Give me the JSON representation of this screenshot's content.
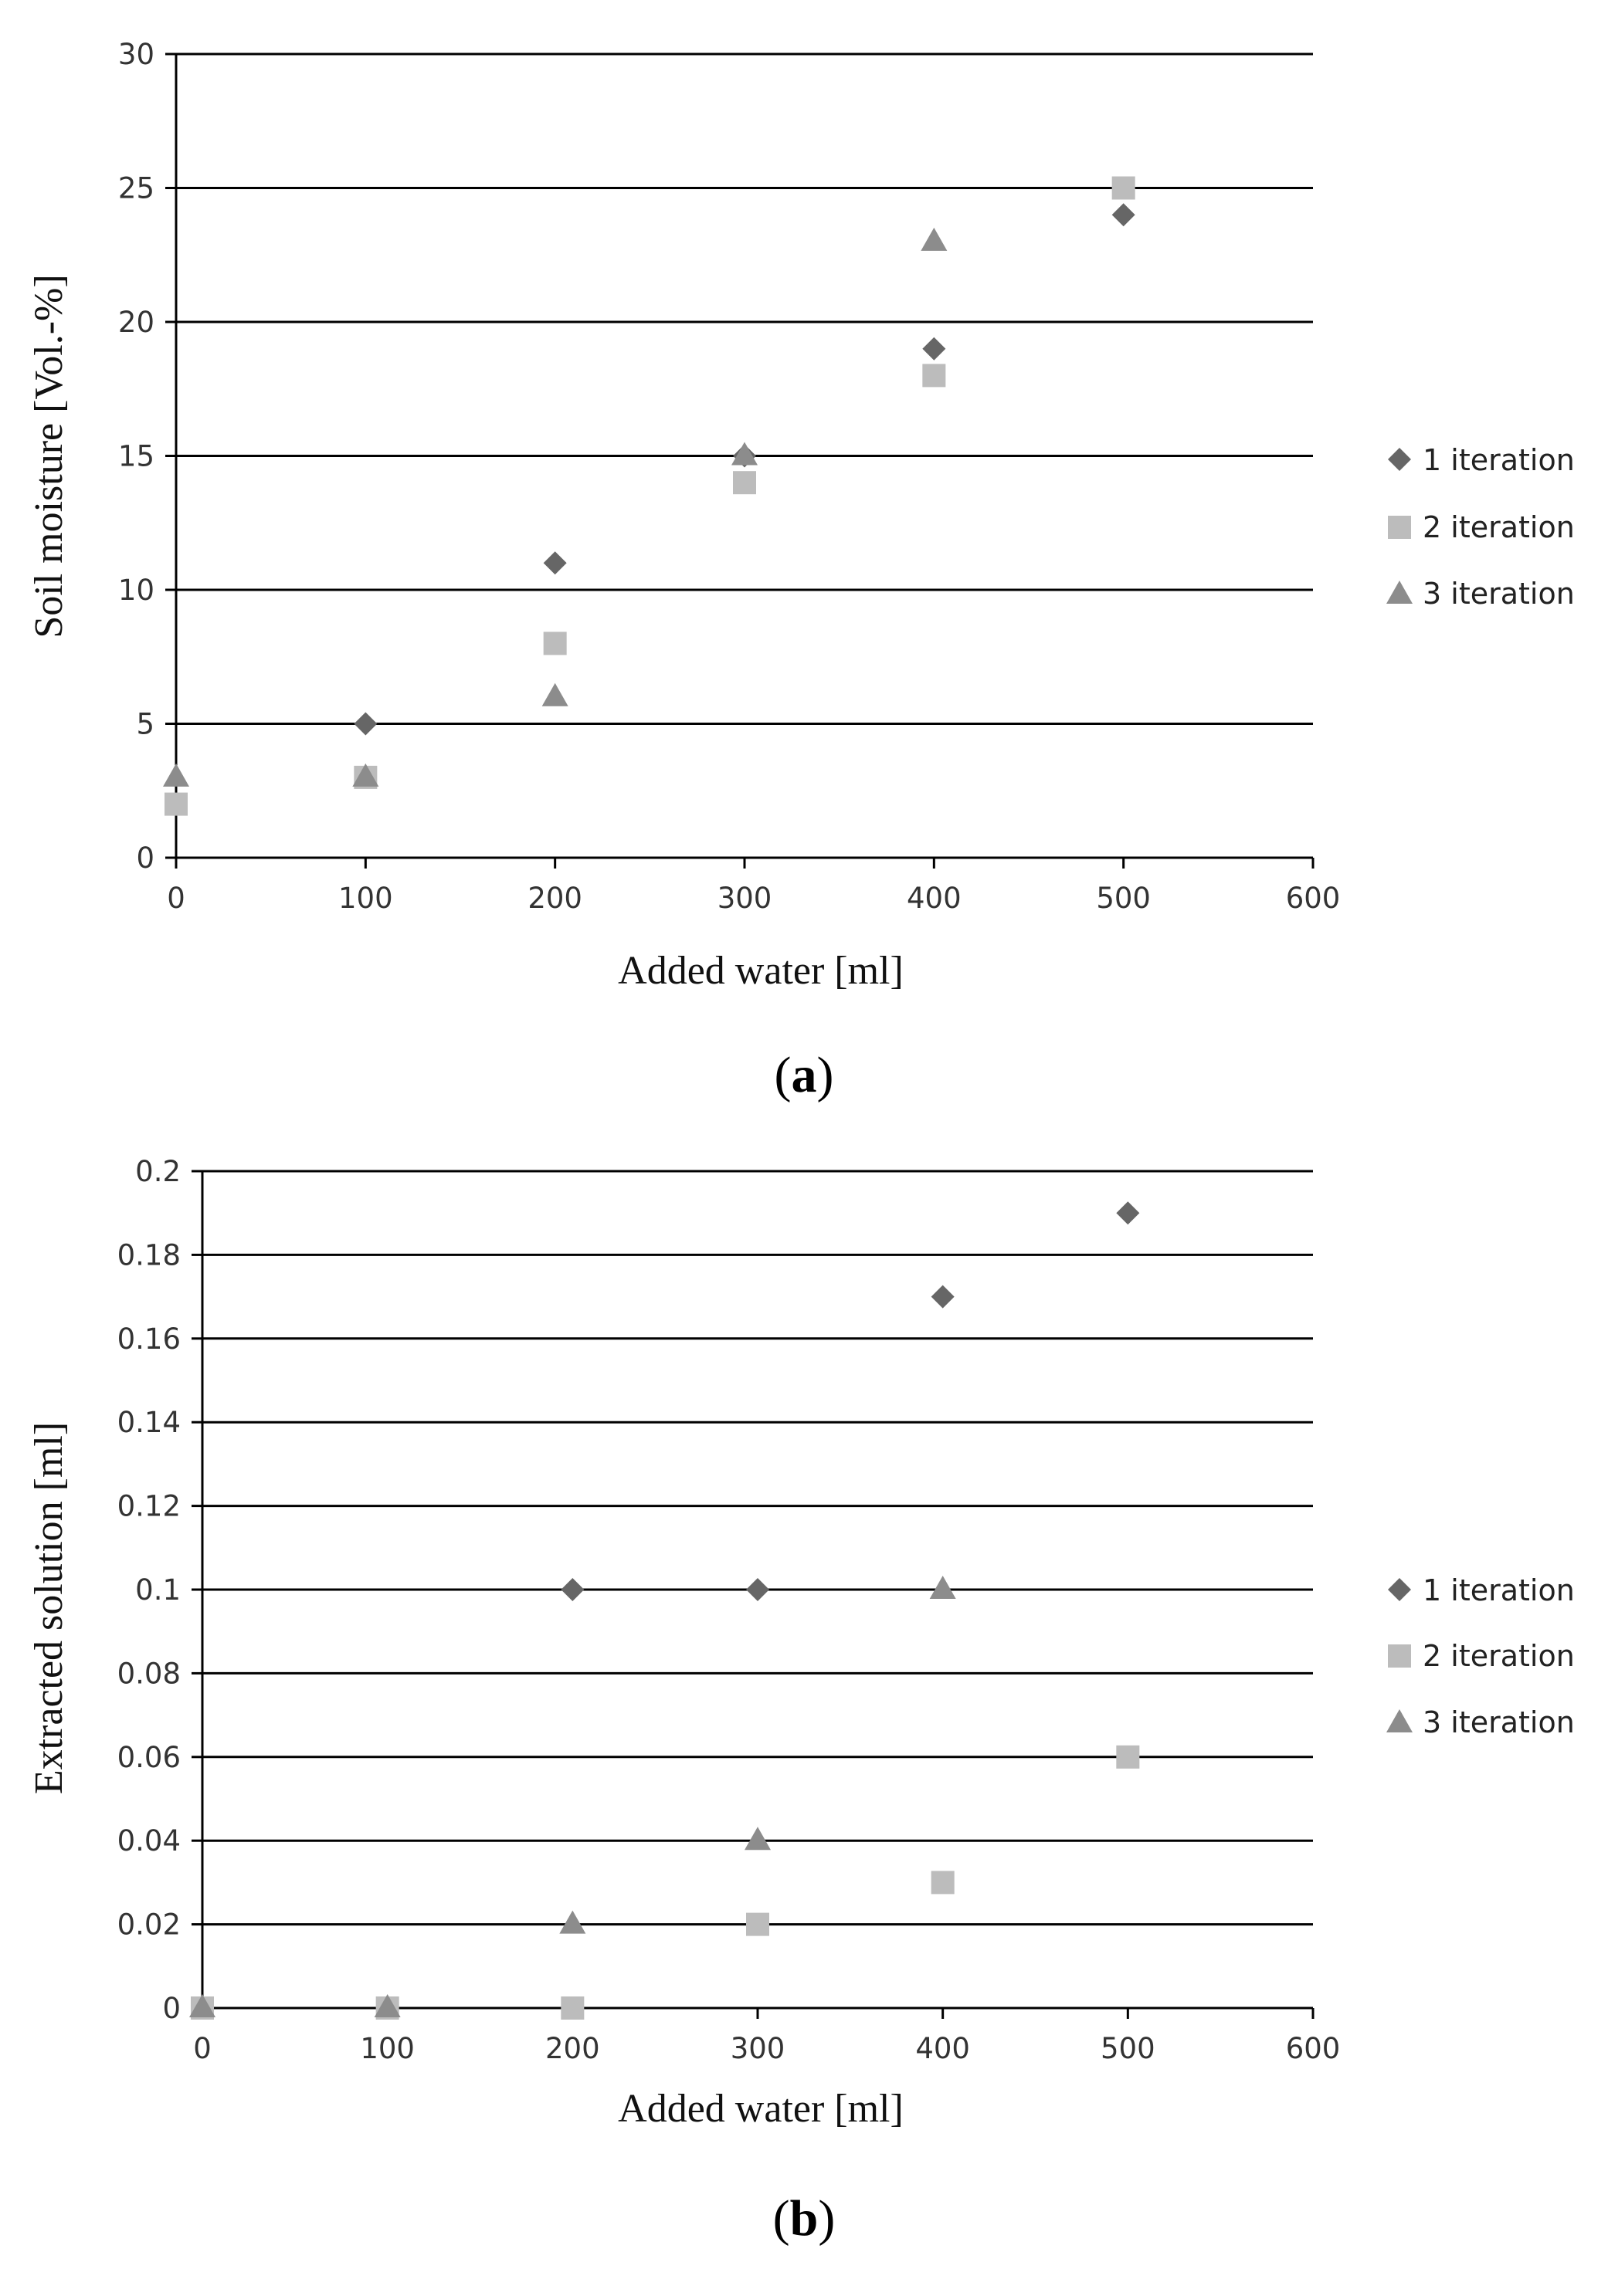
{
  "chart_data": [
    {
      "type": "scatter",
      "panel_label": "a",
      "title": "",
      "xlabel": "Added water [ml]",
      "ylabel": "Soil moisture [Vol.-%]",
      "xlim": [
        0,
        600
      ],
      "ylim": [
        0,
        30
      ],
      "xticks": [
        0,
        100,
        200,
        300,
        400,
        500,
        600
      ],
      "xtick_labels": [
        "0",
        "100",
        "200",
        "300",
        "400",
        "500",
        "600"
      ],
      "yticks": [
        0,
        5,
        10,
        15,
        20,
        25,
        30
      ],
      "ytick_labels": [
        "0",
        "5",
        "10",
        "15",
        "20",
        "25",
        "30"
      ],
      "grid": "horizontal",
      "legend_position": "right",
      "series": [
        {
          "name": "1 iteration",
          "marker": "diamond",
          "color": "#666666",
          "points": [
            [
              100,
              5
            ],
            [
              200,
              11
            ],
            [
              300,
              15
            ],
            [
              400,
              19
            ],
            [
              500,
              24
            ]
          ]
        },
        {
          "name": "2 iteration",
          "marker": "square",
          "color": "#bcbcbc",
          "points": [
            [
              0,
              2
            ],
            [
              100,
              3
            ],
            [
              200,
              8
            ],
            [
              300,
              14
            ],
            [
              400,
              18
            ],
            [
              500,
              25
            ]
          ]
        },
        {
          "name": "3 iteration",
          "marker": "triangle",
          "color": "#8c8c8c",
          "points": [
            [
              0,
              3
            ],
            [
              100,
              3
            ],
            [
              200,
              6
            ],
            [
              300,
              15
            ],
            [
              400,
              23
            ]
          ]
        }
      ]
    },
    {
      "type": "scatter",
      "panel_label": "b",
      "title": "",
      "xlabel": "Added water [ml]",
      "ylabel": "Extracted solution  [ml]",
      "xlim": [
        0,
        600
      ],
      "ylim": [
        0,
        0.2
      ],
      "xticks": [
        0,
        100,
        200,
        300,
        400,
        500,
        600
      ],
      "xtick_labels": [
        "0",
        "100",
        "200",
        "300",
        "400",
        "500",
        "600"
      ],
      "yticks": [
        0,
        0.02,
        0.04,
        0.06,
        0.08,
        0.1,
        0.12,
        0.14,
        0.16,
        0.18,
        0.2
      ],
      "ytick_labels": [
        "0",
        "0.02",
        "0.04",
        "0.06",
        "0.08",
        "0.1",
        "0.12",
        "0.14",
        "0.16",
        "0.18",
        "0.2"
      ],
      "grid": "horizontal",
      "legend_position": "right",
      "series": [
        {
          "name": "1 iteration",
          "marker": "diamond",
          "color": "#666666",
          "points": [
            [
              0,
              0
            ],
            [
              100,
              0
            ],
            [
              200,
              0.1
            ],
            [
              300,
              0.1
            ],
            [
              400,
              0.17
            ],
            [
              500,
              0.19
            ]
          ]
        },
        {
          "name": "2 iteration",
          "marker": "square",
          "color": "#bcbcbc",
          "points": [
            [
              0,
              0
            ],
            [
              100,
              0
            ],
            [
              200,
              0
            ],
            [
              300,
              0.02
            ],
            [
              400,
              0.03
            ],
            [
              500,
              0.06
            ]
          ]
        },
        {
          "name": "3 iteration",
          "marker": "triangle",
          "color": "#8c8c8c",
          "points": [
            [
              0,
              0
            ],
            [
              100,
              0
            ],
            [
              200,
              0.02
            ],
            [
              300,
              0.04
            ],
            [
              400,
              0.1
            ]
          ]
        }
      ]
    }
  ]
}
